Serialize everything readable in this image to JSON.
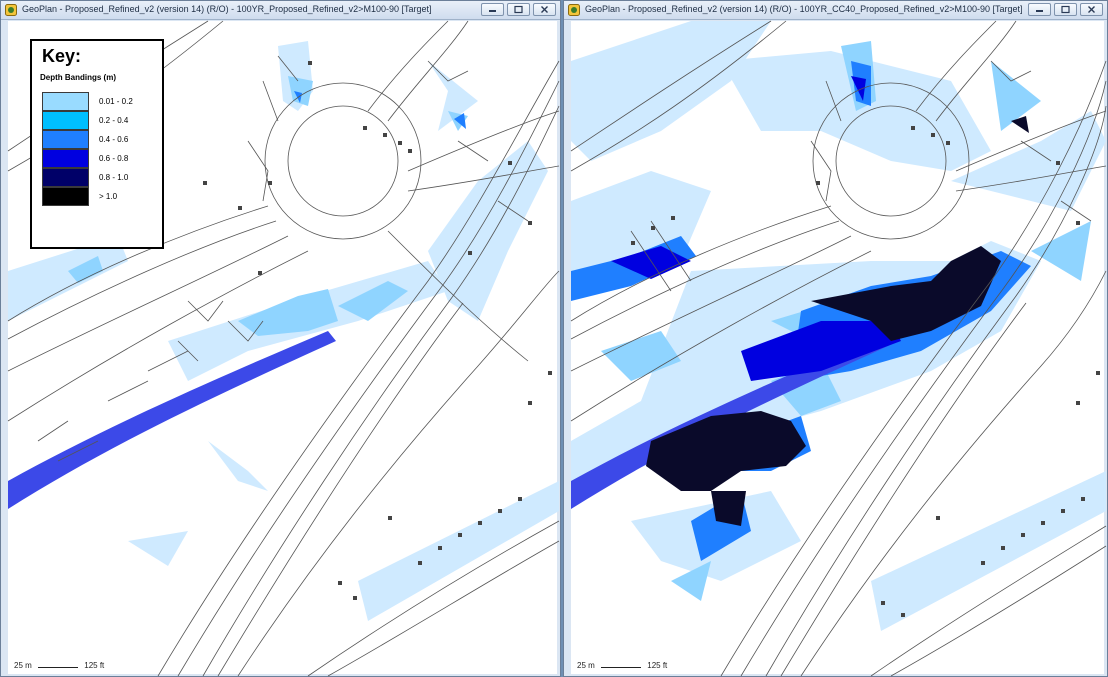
{
  "windows": [
    {
      "title": "GeoPlan - Proposed_Refined_v2 (version 14) (R/O) - 100YR_Proposed_Refined_v2>M100-90  [Target]",
      "scale": {
        "metric": "25 m",
        "imperial": "125 ft"
      }
    },
    {
      "title": "GeoPlan - Proposed_Refined_v2 (version 14) (R/O) - 100YR_CC40_Proposed_Refined_v2>M100-90  [Target]",
      "scale": {
        "metric": "25 m",
        "imperial": "125 ft"
      }
    }
  ],
  "legend": {
    "title": "Key:",
    "subtitle": "Depth Bandings (m)",
    "bands": [
      {
        "label": "0.01 - 0.2",
        "color": "#99dbff"
      },
      {
        "label": "0.2 - 0.4",
        "color": "#00bfff"
      },
      {
        "label": "0.4 - 0.6",
        "color": "#1f7fff"
      },
      {
        "label": "0.6 - 0.8",
        "color": "#0000e0"
      },
      {
        "label": "0.8 - 1.0",
        "color": "#000068"
      },
      {
        "label": "> 1.0",
        "color": "#000000"
      }
    ]
  },
  "colors": {
    "flood_light": "#cfeaff",
    "flood_mid": "#8fd4ff",
    "channel": "#3c49e8",
    "deep": "#0a0a2a",
    "road_line": "#555555"
  },
  "icons": {
    "app": "geoplan-app-icon",
    "minimize": "minimize-icon",
    "maximize": "maximize-icon",
    "close": "close-icon"
  }
}
